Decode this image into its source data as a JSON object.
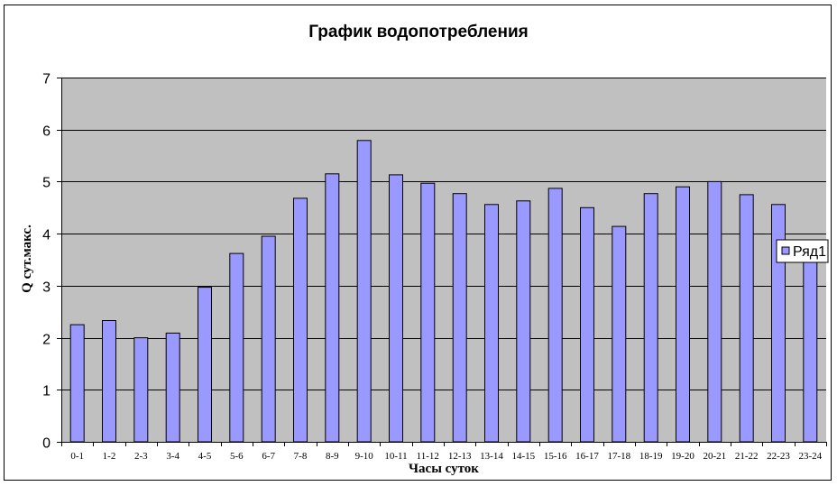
{
  "chart_data": {
    "type": "bar",
    "title": "График водопотребления",
    "xlabel": "Часы суток",
    "ylabel": "Q сут.макс.",
    "ylim": [
      0,
      7
    ],
    "yticks": [
      0,
      1,
      2,
      3,
      4,
      5,
      6,
      7
    ],
    "grid": true,
    "legend_position": "right",
    "categories": [
      "0-1",
      "1-2",
      "2-3",
      "3-4",
      "4-5",
      "5-6",
      "6-7",
      "7-8",
      "8-9",
      "9-10",
      "10-11",
      "11-12",
      "12-13",
      "13-14",
      "14-15",
      "15-16",
      "16-17",
      "17-18",
      "18-19",
      "19-20",
      "20-21",
      "21-22",
      "22-23",
      "23-24"
    ],
    "series": [
      {
        "name": "Ряд1",
        "color": "#9999ff",
        "values": [
          2.25,
          2.33,
          2.0,
          2.09,
          2.97,
          3.62,
          3.95,
          4.68,
          5.15,
          5.79,
          5.13,
          4.97,
          4.77,
          4.56,
          4.63,
          4.87,
          4.5,
          4.14,
          4.77,
          4.9,
          5.0,
          4.75,
          4.56,
          3.55
        ]
      }
    ],
    "plot_background": "#c0c0c0"
  }
}
